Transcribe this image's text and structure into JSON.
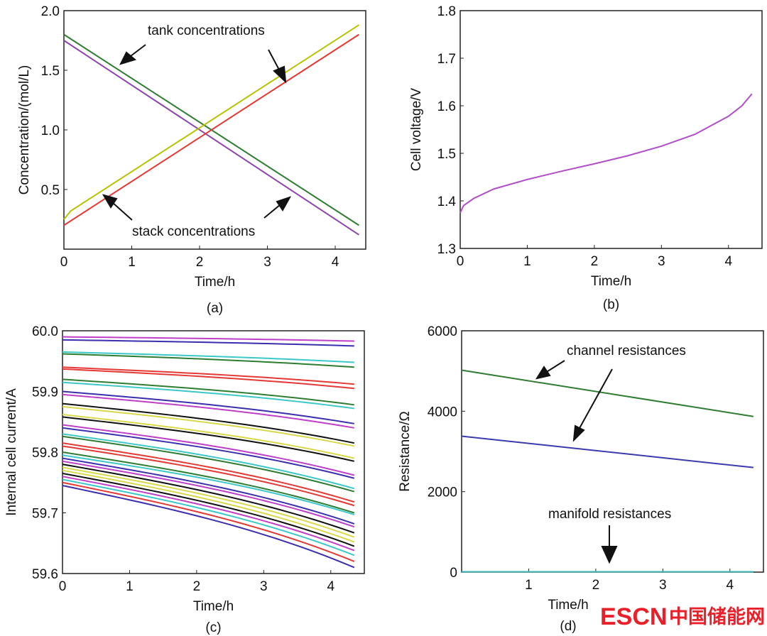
{
  "chart_data": [
    {
      "id": "a",
      "type": "line",
      "caption": "(a)",
      "xlabel": "Time/h",
      "ylabel": "Concentration/(mol/L)",
      "xlim": [
        0,
        4.45
      ],
      "ylim": [
        0,
        2.0
      ],
      "xticks": [
        "0",
        "1",
        "2",
        "3",
        "4"
      ],
      "xtick_values": [
        0,
        1,
        2,
        3,
        4
      ],
      "yticks": [
        "0.5",
        "1.0",
        "1.5",
        "2.0"
      ],
      "ytick_values": [
        0.5,
        1.0,
        1.5,
        2.0
      ],
      "series": [
        {
          "name": "tank concentration (decreasing)",
          "color": "#2e7d32",
          "x": [
            0,
            4.35
          ],
          "y": [
            1.8,
            0.2
          ]
        },
        {
          "name": "stack concentration (decreasing)",
          "color": "#8e44ad",
          "x": [
            0,
            4.35
          ],
          "y": [
            1.75,
            0.12
          ]
        },
        {
          "name": "tank concentration (increasing)",
          "color": "#b5c400",
          "x": [
            0,
            0.1,
            4.35
          ],
          "y": [
            0.25,
            0.32,
            1.88
          ]
        },
        {
          "name": "stack concentration (increasing)",
          "color": "#e53935",
          "x": [
            0,
            4.35
          ],
          "y": [
            0.2,
            1.8
          ]
        }
      ],
      "annotations": [
        "tank concentrations",
        "stack concentrations"
      ]
    },
    {
      "id": "b",
      "type": "line",
      "caption": "(b)",
      "xlabel": "Time/h",
      "ylabel": "Cell voltage/V",
      "xlim": [
        0,
        4.5
      ],
      "ylim": [
        1.3,
        1.8
      ],
      "xticks": [
        "0",
        "1",
        "2",
        "3",
        "4"
      ],
      "xtick_values": [
        0,
        1,
        2,
        3,
        4
      ],
      "yticks": [
        "1.3",
        "1.4",
        "1.5",
        "1.6",
        "1.7",
        "1.8"
      ],
      "ytick_values": [
        1.3,
        1.4,
        1.5,
        1.6,
        1.7,
        1.8
      ],
      "series": [
        {
          "name": "cell voltage",
          "color": "#b04ec8",
          "x": [
            0,
            0.05,
            0.2,
            0.5,
            1,
            1.5,
            2,
            2.5,
            3,
            3.5,
            4,
            4.2,
            4.35
          ],
          "y": [
            1.375,
            1.39,
            1.405,
            1.425,
            1.445,
            1.462,
            1.478,
            1.495,
            1.515,
            1.54,
            1.578,
            1.6,
            1.625
          ]
        }
      ]
    },
    {
      "id": "c",
      "type": "line",
      "caption": "(c)",
      "xlabel": "Time/h",
      "ylabel": "Internal cell current/A",
      "xlim": [
        0,
        4.5
      ],
      "ylim": [
        59.6,
        60.0
      ],
      "xticks": [
        "0",
        "1",
        "2",
        "3",
        "4"
      ],
      "xtick_values": [
        0,
        1,
        2,
        3,
        4
      ],
      "yticks": [
        "59.6",
        "59.7",
        "59.8",
        "59.9",
        "60.0"
      ],
      "ytick_values": [
        59.6,
        59.7,
        59.8,
        59.9,
        60.0
      ],
      "x_end": 4.35,
      "series_start": [
        59.99,
        59.985,
        59.965,
        59.962,
        59.94,
        59.937,
        59.92,
        59.915,
        59.9,
        59.895,
        59.88,
        59.875,
        59.862,
        59.858,
        59.845,
        59.84,
        59.83,
        59.826,
        59.815,
        59.81,
        59.8,
        59.795,
        59.79,
        59.785,
        59.78,
        59.775,
        59.77,
        59.765,
        59.76,
        59.755,
        59.75,
        59.745
      ],
      "series_end": [
        59.983,
        59.975,
        59.948,
        59.94,
        59.912,
        59.905,
        59.878,
        59.872,
        59.847,
        59.84,
        59.815,
        59.81,
        59.79,
        59.785,
        59.762,
        59.757,
        59.74,
        59.735,
        59.718,
        59.712,
        59.7,
        59.697,
        59.682,
        59.677,
        59.667,
        59.66,
        59.652,
        59.645,
        59.638,
        59.63,
        59.62,
        59.61
      ],
      "colors": [
        "#c03fc8",
        "#3b2fb0",
        "#3cc8c8",
        "#2e7d32",
        "#e53935",
        "#e53935",
        "#2e7d32",
        "#3cc8c8",
        "#3b2fb0",
        "#c03fc8",
        "#111111",
        "#d8d84a",
        "#d8d84a",
        "#111111",
        "#c03fc8",
        "#3b2fb0",
        "#3cc8c8",
        "#2e7d32",
        "#e53935",
        "#e53935",
        "#2e7d32",
        "#3cc8c8",
        "#3b2fb0",
        "#c03fc8",
        "#111111",
        "#d8d84a",
        "#d8d84a",
        "#111111",
        "#c03fc8",
        "#3cc8c8",
        "#e53935",
        "#3b2fb0"
      ]
    },
    {
      "id": "d",
      "type": "line",
      "caption": "(d)",
      "xlabel": "Time/h",
      "ylabel": "Resistance/Ω",
      "xlim": [
        0,
        4.5
      ],
      "ylim": [
        0,
        6000
      ],
      "xticks": [
        "1",
        "2",
        "3",
        "4"
      ],
      "xtick_values": [
        1,
        2,
        3,
        4
      ],
      "yticks": [
        "0",
        "2000",
        "4000",
        "6000"
      ],
      "ytick_values": [
        0,
        2000,
        4000,
        6000
      ],
      "series": [
        {
          "name": "channel resistance 1",
          "color": "#2e7d32",
          "x": [
            0,
            4.35
          ],
          "y": [
            5020,
            3870
          ]
        },
        {
          "name": "channel resistance 2",
          "color": "#3b3bb0",
          "x": [
            0,
            4.35
          ],
          "y": [
            3380,
            2600
          ]
        },
        {
          "name": "manifold resistance",
          "color": "#3cb8b8",
          "x": [
            0,
            4.35
          ],
          "y": [
            8,
            8
          ]
        }
      ],
      "annotations": [
        "channel resistances",
        "manifold resistances"
      ]
    }
  ],
  "watermark": {
    "text_latin": "ESCN",
    "text_cjk": "中国储能网",
    "color": "#e8202a"
  }
}
